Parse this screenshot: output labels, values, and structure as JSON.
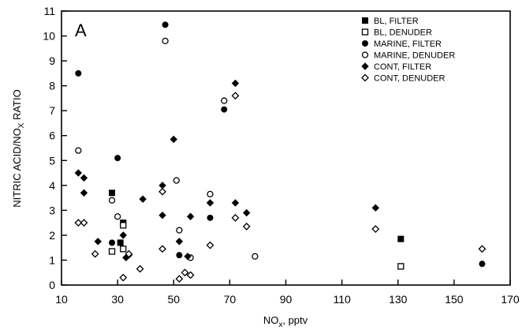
{
  "chart_data": {
    "type": "scatter",
    "panel_label": "A",
    "xlabel": {
      "main": "NO",
      "sub": "x",
      "rest": ", pptv"
    },
    "ylabel": {
      "main": "NITRIC ACID/NO",
      "sub": "X",
      "rest": " RATIO"
    },
    "xlim": [
      10,
      170
    ],
    "ylim": [
      0,
      11
    ],
    "xticks": [
      10,
      30,
      50,
      70,
      90,
      110,
      130,
      150,
      170
    ],
    "yticks": [
      0,
      1,
      2,
      3,
      4,
      5,
      6,
      7,
      8,
      9,
      10,
      11
    ],
    "legend_position": "top-right",
    "grid": false,
    "series": [
      {
        "name": "BL, FILTER",
        "marker": "filled-square",
        "points": [
          [
            28,
            3.7
          ],
          [
            32,
            2.5
          ],
          [
            31,
            1.7
          ],
          [
            131,
            1.85
          ]
        ]
      },
      {
        "name": "BL, DENUDER",
        "marker": "open-square",
        "points": [
          [
            28,
            1.35
          ],
          [
            32,
            1.45
          ],
          [
            32,
            2.4
          ],
          [
            131,
            0.75
          ]
        ]
      },
      {
        "name": "MARINE, FILTER",
        "marker": "filled-circle",
        "points": [
          [
            16,
            8.5
          ],
          [
            30,
            5.1
          ],
          [
            47,
            10.45
          ],
          [
            68,
            7.05
          ],
          [
            63,
            2.7
          ],
          [
            52,
            1.2
          ],
          [
            28,
            1.7
          ],
          [
            160,
            0.85
          ]
        ]
      },
      {
        "name": "MARINE, DENUDER",
        "marker": "open-circle",
        "points": [
          [
            16,
            5.4
          ],
          [
            28,
            3.4
          ],
          [
            30,
            2.75
          ],
          [
            47,
            9.8
          ],
          [
            51,
            4.2
          ],
          [
            52,
            2.2
          ],
          [
            56,
            1.1
          ],
          [
            63,
            3.65
          ],
          [
            68,
            7.4
          ],
          [
            79,
            1.15
          ]
        ]
      },
      {
        "name": "CONT, FILTER",
        "marker": "filled-diamond",
        "points": [
          [
            16,
            4.5
          ],
          [
            18,
            4.3
          ],
          [
            18,
            3.7
          ],
          [
            23,
            1.75
          ],
          [
            32,
            2.0
          ],
          [
            33,
            1.1
          ],
          [
            34,
            1.2
          ],
          [
            39,
            3.45
          ],
          [
            46,
            4.0
          ],
          [
            46,
            2.8
          ],
          [
            50,
            5.85
          ],
          [
            52,
            1.75
          ],
          [
            55,
            1.15
          ],
          [
            56,
            2.75
          ],
          [
            63,
            3.3
          ],
          [
            72,
            8.1
          ],
          [
            72,
            3.3
          ],
          [
            76,
            2.9
          ],
          [
            122,
            3.1
          ]
        ]
      },
      {
        "name": "CONT, DENUDER",
        "marker": "open-diamond",
        "points": [
          [
            16,
            2.5
          ],
          [
            18,
            2.5
          ],
          [
            22,
            1.25
          ],
          [
            32,
            0.3
          ],
          [
            34,
            1.25
          ],
          [
            38,
            0.65
          ],
          [
            46,
            3.75
          ],
          [
            46,
            1.45
          ],
          [
            52,
            0.25
          ],
          [
            54,
            0.5
          ],
          [
            56,
            0.4
          ],
          [
            63,
            1.6
          ],
          [
            72,
            7.6
          ],
          [
            72,
            2.7
          ],
          [
            76,
            2.35
          ],
          [
            122,
            2.25
          ],
          [
            160,
            1.45
          ]
        ]
      }
    ]
  }
}
